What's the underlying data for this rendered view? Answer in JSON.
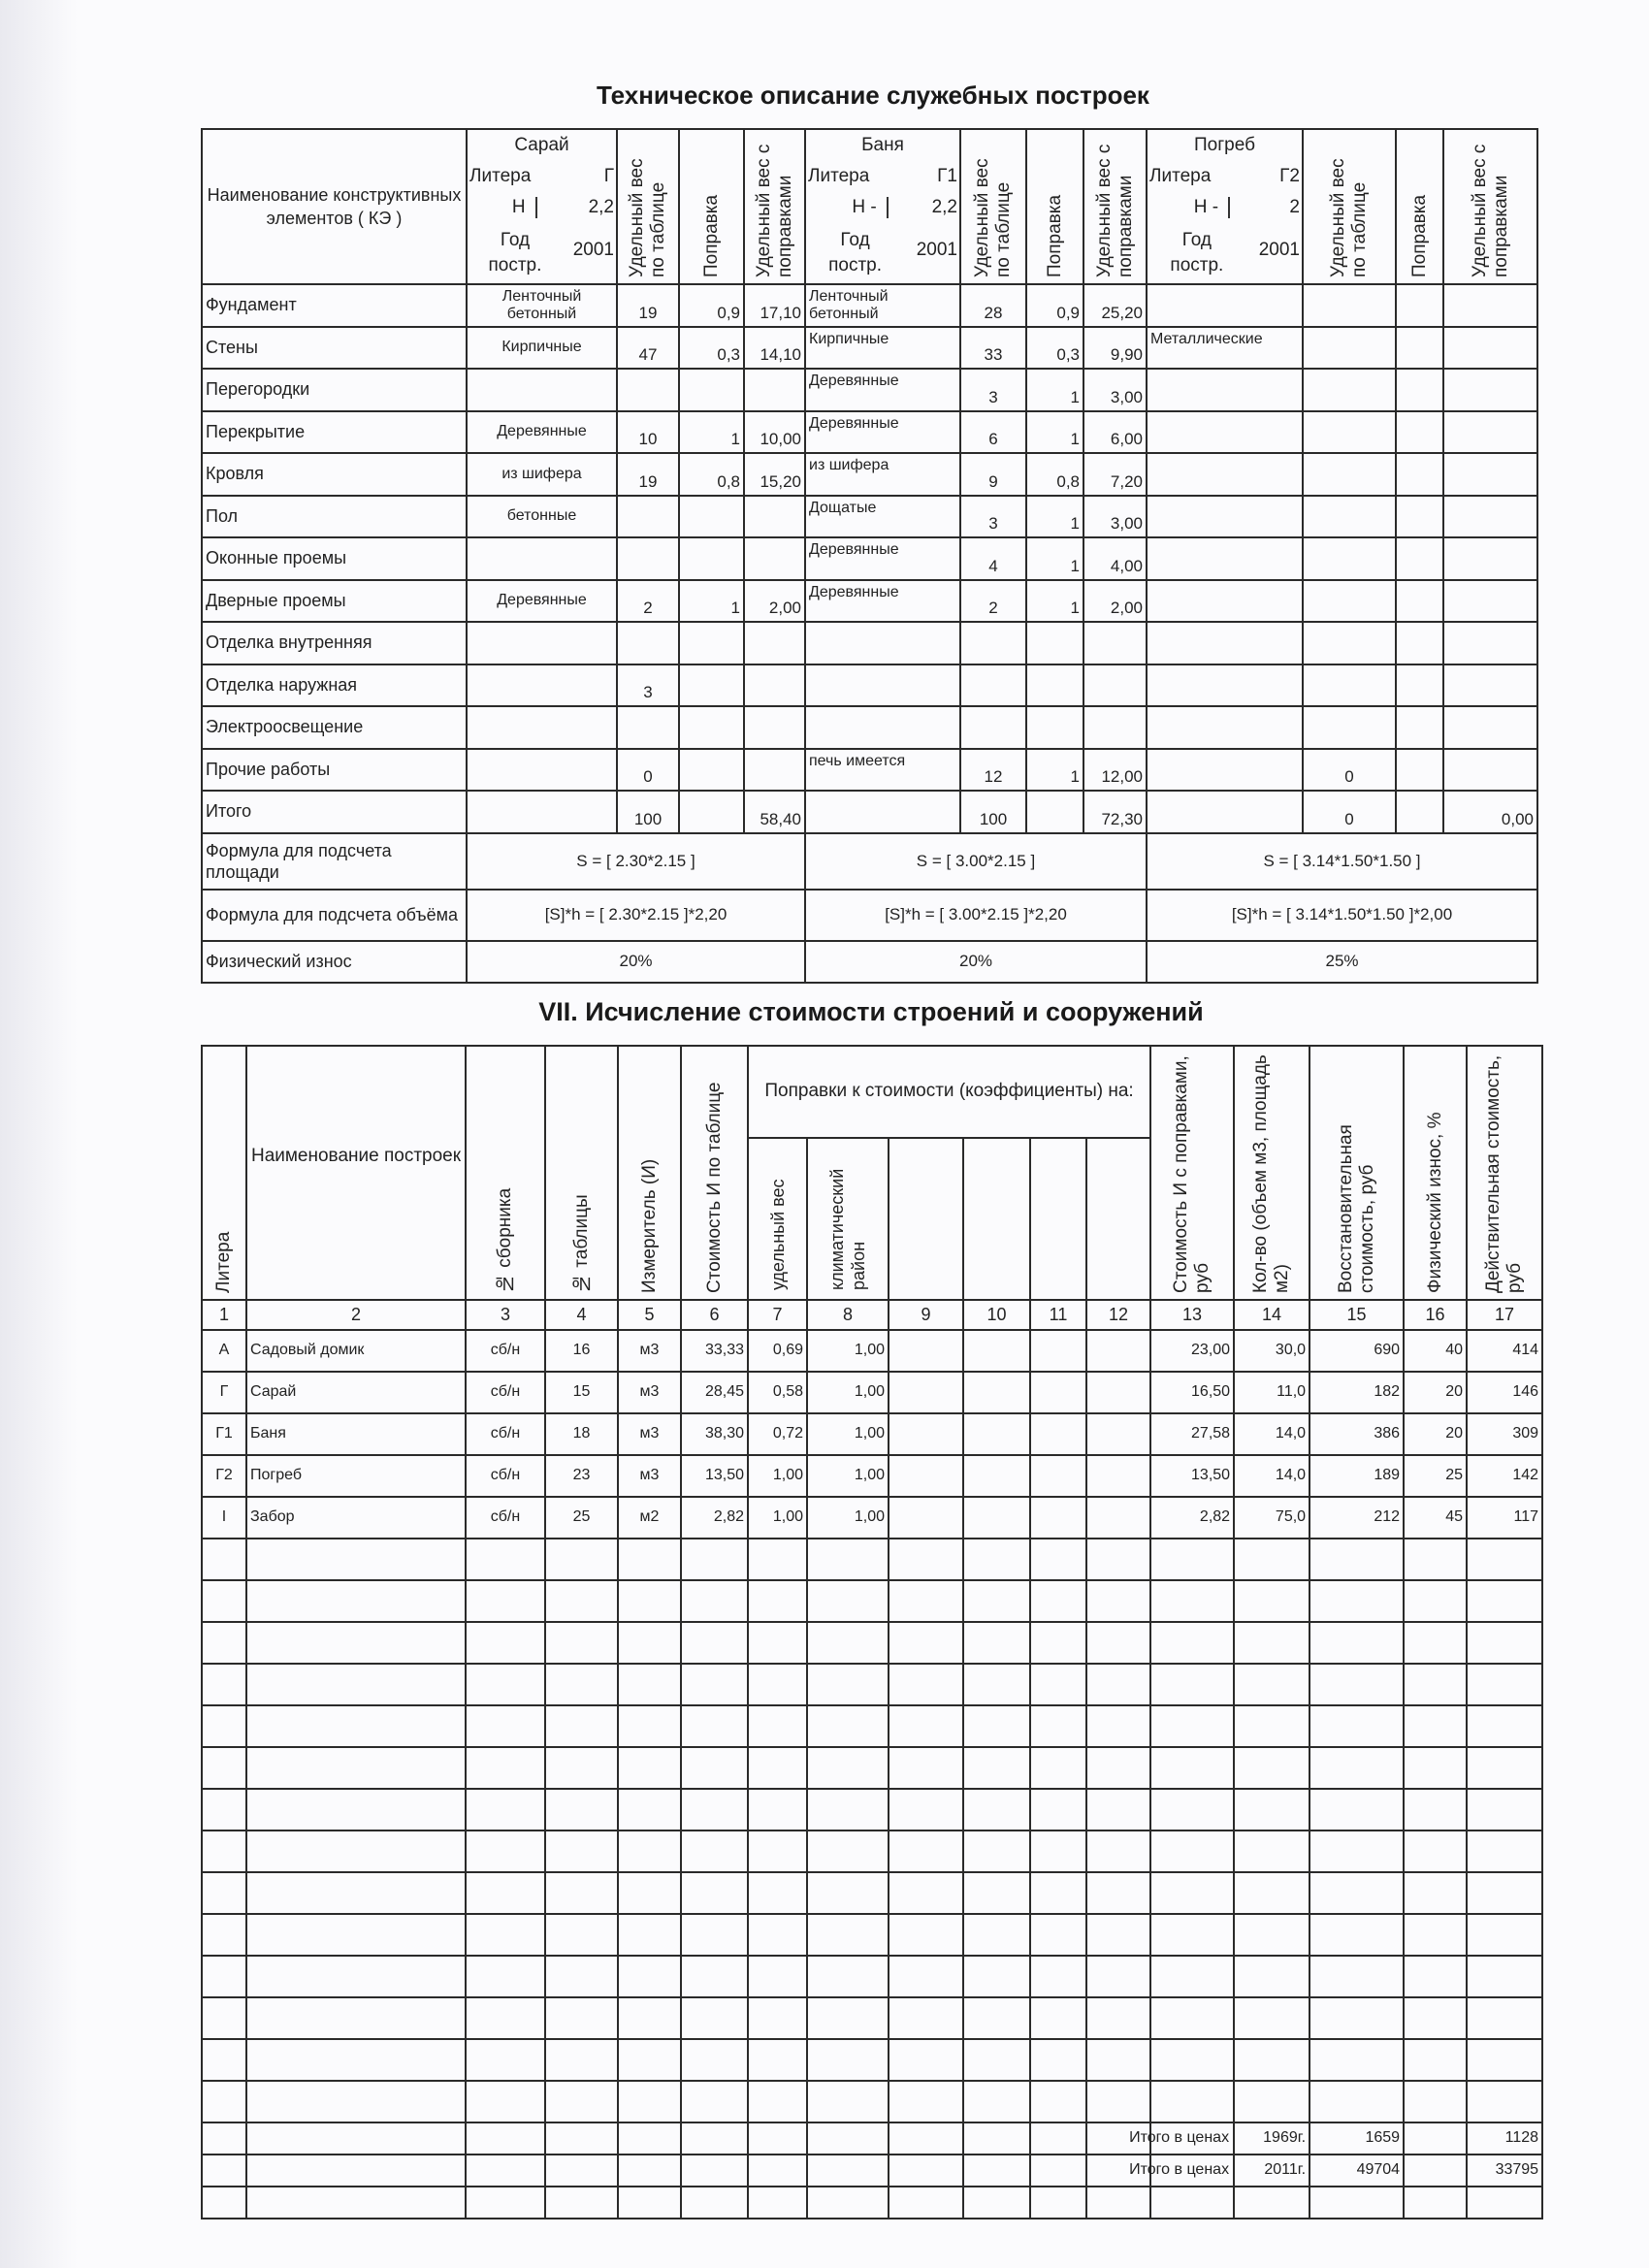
{
  "top": {
    "title": "Техническое описание служебных построек",
    "name_header": "Наименование конструктивных элементов ( КЭ )",
    "col_labels": [
      "Удельный вес по таблице",
      "Поправка",
      "Удельный вес с поправками"
    ],
    "buildings": [
      {
        "name": "Сарай",
        "litera_label": "Литера",
        "litera": "Г",
        "h_label": "Н",
        "h": "2,2",
        "year_label": "Год постр.",
        "year": "2001"
      },
      {
        "name": "Баня",
        "litera_label": "Литера",
        "litera": "Г1",
        "h_label": "Н -",
        "h": "2,2",
        "year_label": "Год постр.",
        "year": "2001"
      },
      {
        "name": "Погреб",
        "litera_label": "Литера",
        "litera": "Г2",
        "h_label": "Н -",
        "h": "2",
        "year_label": "Год постр.",
        "year": "2001"
      }
    ],
    "rows": [
      {
        "name": "Фундамент",
        "cells": [
          [
            "Ленточный бетонный",
            "19",
            "0,9",
            "17,10"
          ],
          [
            "Ленточный бетонный",
            "28",
            "0,9",
            "25,20"
          ],
          [
            "",
            "",
            "",
            ""
          ]
        ]
      },
      {
        "name": "Стены",
        "cells": [
          [
            "Кирпичные",
            "47",
            "0,3",
            "14,10"
          ],
          [
            "Кирпичные",
            "33",
            "0,3",
            "9,90"
          ],
          [
            "Металлические",
            "",
            "",
            ""
          ]
        ]
      },
      {
        "name": "Перегородки",
        "cells": [
          [
            "",
            "",
            "",
            ""
          ],
          [
            "Деревянные",
            "3",
            "1",
            "3,00"
          ],
          [
            "",
            "",
            "",
            ""
          ]
        ]
      },
      {
        "name": "Перекрытие",
        "cells": [
          [
            "Деревянные",
            "10",
            "1",
            "10,00"
          ],
          [
            "Деревянные",
            "6",
            "1",
            "6,00"
          ],
          [
            "",
            "",
            "",
            ""
          ]
        ]
      },
      {
        "name": "Кровля",
        "cells": [
          [
            "из шифера",
            "19",
            "0,8",
            "15,20"
          ],
          [
            "из шифера",
            "9",
            "0,8",
            "7,20"
          ],
          [
            "",
            "",
            "",
            ""
          ]
        ]
      },
      {
        "name": "Пол",
        "cells": [
          [
            "бетонные",
            "",
            "",
            ""
          ],
          [
            "Дощатые",
            "3",
            "1",
            "3,00"
          ],
          [
            "",
            "",
            "",
            ""
          ]
        ]
      },
      {
        "name": "Оконные проемы",
        "cells": [
          [
            "",
            "",
            "",
            ""
          ],
          [
            "Деревянные",
            "4",
            "1",
            "4,00"
          ],
          [
            "",
            "",
            "",
            ""
          ]
        ]
      },
      {
        "name": "Дверные проемы",
        "cells": [
          [
            "Деревянные",
            "2",
            "1",
            "2,00"
          ],
          [
            "Деревянные",
            "2",
            "1",
            "2,00"
          ],
          [
            "",
            "",
            "",
            ""
          ]
        ]
      },
      {
        "name": "Отделка внутренняя",
        "cells": [
          [
            "",
            "",
            "",
            ""
          ],
          [
            "",
            "",
            "",
            ""
          ],
          [
            "",
            "",
            "",
            ""
          ]
        ]
      },
      {
        "name": "Отделка наружная",
        "cells": [
          [
            "",
            "3",
            "",
            ""
          ],
          [
            "",
            "",
            "",
            ""
          ],
          [
            "",
            "",
            "",
            ""
          ]
        ]
      },
      {
        "name": "Электроосвещение",
        "cells": [
          [
            "",
            "",
            "",
            ""
          ],
          [
            "",
            "",
            "",
            ""
          ],
          [
            "",
            "",
            "",
            ""
          ]
        ]
      },
      {
        "name": "Прочие работы",
        "cells": [
          [
            "",
            "0",
            "",
            ""
          ],
          [
            "печь имеется",
            "12",
            "1",
            "12,00"
          ],
          [
            "",
            "0",
            "",
            ""
          ]
        ]
      },
      {
        "name": "Итого",
        "cells": [
          [
            "",
            "100",
            "",
            "58,40"
          ],
          [
            "",
            "100",
            "",
            "72,30"
          ],
          [
            "",
            "0",
            "",
            "0,00"
          ]
        ]
      }
    ],
    "formula_rows": [
      {
        "name": "Формула для подсчета площади",
        "values": [
          "S = [ 2.30*2.15 ]",
          "S = [ 3.00*2.15 ]",
          "S = [ 3.14*1.50*1.50 ]"
        ]
      },
      {
        "name": "Формула для подсчета объёма",
        "values": [
          "[S]*h = [ 2.30*2.15 ]*2,20",
          "[S]*h = [ 3.00*2.15 ]*2,20",
          "[S]*h = [ 3.14*1.50*1.50 ]*2,00"
        ]
      },
      {
        "name": "Физический износ",
        "values": [
          "20%",
          "20%",
          "25%"
        ]
      }
    ]
  },
  "bottom": {
    "title": "VII. Исчисление стоимости строений и сооружений",
    "headers": [
      "Литера",
      "Наименование построек",
      "№ сборника",
      "№ таблицы",
      "Измеритель (И)",
      "Стоимость И по таблице"
    ],
    "corrections_header": "Поправки к стоимости (коэффициенты) на:",
    "correction_cols": [
      "удельный вес",
      "климатический район",
      "",
      "",
      "",
      ""
    ],
    "headers_right": [
      "Стоимость И с поправками, руб",
      "Кол-во (объем  м3, площадь  м2)",
      "Восстановительная стоимость, руб",
      "Физический износ, %",
      "Действительная стоимость, руб"
    ],
    "col_numbers": [
      "1",
      "2",
      "3",
      "4",
      "5",
      "6",
      "7",
      "8",
      "9",
      "10",
      "11",
      "12",
      "13",
      "14",
      "15",
      "16",
      "17"
    ],
    "rows": [
      [
        "А",
        "Садовый домик",
        "сб/н",
        "16",
        "м3",
        "33,33",
        "0,69",
        "1,00",
        "",
        "",
        "",
        "",
        "23,00",
        "30,0",
        "690",
        "40",
        "414"
      ],
      [
        "Г",
        "Сарай",
        "сб/н",
        "15",
        "м3",
        "28,45",
        "0,58",
        "1,00",
        "",
        "",
        "",
        "",
        "16,50",
        "11,0",
        "182",
        "20",
        "146"
      ],
      [
        "Г1",
        "Баня",
        "сб/н",
        "18",
        "м3",
        "38,30",
        "0,72",
        "1,00",
        "",
        "",
        "",
        "",
        "27,58",
        "14,0",
        "386",
        "20",
        "309"
      ],
      [
        "Г2",
        "Погреб",
        "сб/н",
        "23",
        "м3",
        "13,50",
        "1,00",
        "1,00",
        "",
        "",
        "",
        "",
        "13,50",
        "14,0",
        "189",
        "25",
        "142"
      ],
      [
        "I",
        "Забор",
        "сб/н",
        "25",
        "м2",
        "2,82",
        "1,00",
        "1,00",
        "",
        "",
        "",
        "",
        "2,82",
        "75,0",
        "212",
        "45",
        "117"
      ]
    ],
    "totals": [
      {
        "label": "Итого в ценах",
        "year": "1969г.",
        "restoration": "1659",
        "actual": "1128"
      },
      {
        "label": "Итого в ценах",
        "year": "2011г.",
        "restoration": "49704",
        "actual": "33795"
      }
    ]
  }
}
